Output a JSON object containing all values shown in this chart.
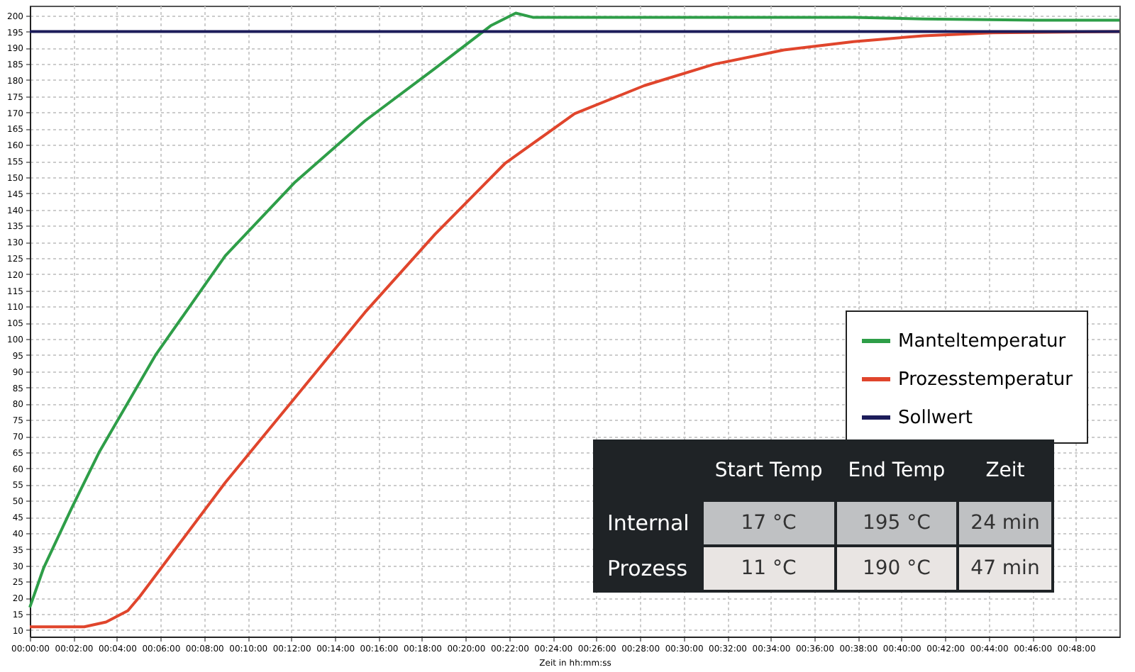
{
  "chart_data": {
    "type": "line",
    "xlabel": "Zeit in hh:mm:ss",
    "xlim": [
      0,
      50
    ],
    "ylim": [
      8,
      203
    ],
    "xticks": [
      {
        "value": 0,
        "label": "00:00:00"
      },
      {
        "value": 2,
        "label": "00:02:00"
      },
      {
        "value": 4,
        "label": "00:04:00"
      },
      {
        "value": 6,
        "label": "00:06:00"
      },
      {
        "value": 8,
        "label": "00:08:00"
      },
      {
        "value": 10,
        "label": "00:10:00"
      },
      {
        "value": 12,
        "label": "00:12:00"
      },
      {
        "value": 14,
        "label": "00:14:00"
      },
      {
        "value": 16,
        "label": "00:16:00"
      },
      {
        "value": 18,
        "label": "00:18:00"
      },
      {
        "value": 20,
        "label": "00:20:00"
      },
      {
        "value": 22,
        "label": "00:22:00"
      },
      {
        "value": 24,
        "label": "00:24:00"
      },
      {
        "value": 26,
        "label": "00:26:00"
      },
      {
        "value": 28,
        "label": "00:28:00"
      },
      {
        "value": 30,
        "label": "00:30:00"
      },
      {
        "value": 32,
        "label": "00:32:00"
      },
      {
        "value": 34,
        "label": "00:34:00"
      },
      {
        "value": 36,
        "label": "00:36:00"
      },
      {
        "value": 38,
        "label": "00:38:00"
      },
      {
        "value": 40,
        "label": "00:40:00"
      },
      {
        "value": 42,
        "label": "00:42:00"
      },
      {
        "value": 44,
        "label": "00:44:00"
      },
      {
        "value": 46,
        "label": "00:46:00"
      },
      {
        "value": 48,
        "label": "00:48:00"
      }
    ],
    "yticks": [
      10,
      15,
      20,
      25,
      30,
      35,
      40,
      45,
      50,
      55,
      60,
      65,
      70,
      75,
      80,
      85,
      90,
      95,
      100,
      105,
      110,
      115,
      120,
      125,
      130,
      135,
      140,
      145,
      150,
      155,
      160,
      165,
      170,
      175,
      180,
      185,
      190,
      195,
      200
    ],
    "grid": true,
    "legend": "right",
    "line_style": "solid",
    "marker": "none",
    "series": [
      {
        "name": "Manteltemperatur",
        "color": "#2e9e48",
        "x": [
          0,
          0.64,
          1.92,
          3.2,
          5.77,
          8.97,
          12.18,
          15.38,
          18.59,
          21.15,
          22.3,
          23.08,
          37.8,
          41,
          46.2,
          50
        ],
        "values": [
          17,
          29.3,
          47.7,
          65.2,
          95,
          125.7,
          148.5,
          167.4,
          183.6,
          196.8,
          200.7,
          199.4,
          199.4,
          198.9,
          198.5,
          198.5
        ]
      },
      {
        "name": "Prozesstemperatur",
        "color": "#e0452c",
        "x": [
          0,
          2.5,
          3.5,
          4.5,
          5.06,
          8.97,
          12.18,
          15.38,
          18.59,
          21.8,
          25,
          28.2,
          31.4,
          34.6,
          37.8,
          41,
          44.2,
          50
        ],
        "values": [
          11,
          11,
          12.5,
          16,
          20.5,
          55.6,
          81.9,
          108.2,
          132.3,
          154.2,
          169.6,
          178.3,
          184.9,
          189.3,
          191.9,
          193.7,
          194.6,
          195
        ]
      },
      {
        "name": "Sollwert",
        "color": "#1c1c5a",
        "x": [
          0,
          50
        ],
        "values": [
          195,
          195
        ]
      }
    ],
    "annotations": [
      "Start Temp",
      "End Temp",
      "Zeit",
      "Internal",
      "17 °C",
      "195 °C",
      "24 min",
      "Prozess",
      "11 °C",
      "190 °C",
      "47 min"
    ]
  }
}
